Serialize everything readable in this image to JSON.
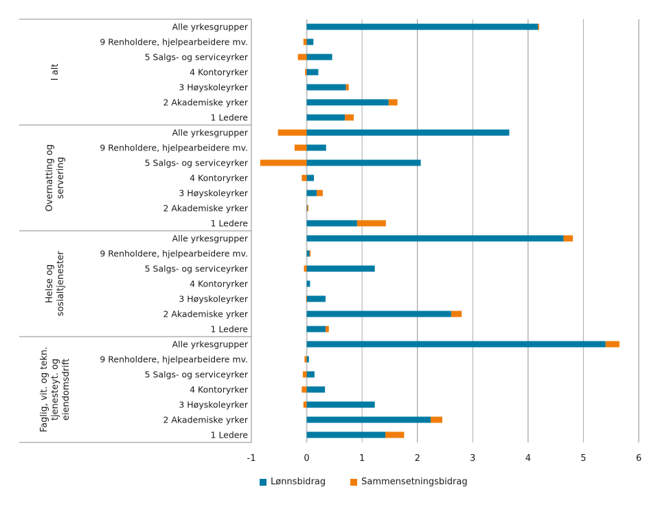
{
  "chart_data": {
    "type": "bar",
    "orientation": "horizontal",
    "stacked": true,
    "title": "",
    "xlabel": "",
    "ylabel": "",
    "xlim": [
      -1,
      6
    ],
    "xticks": [
      -1,
      0,
      1,
      2,
      3,
      4,
      5,
      6
    ],
    "xtick_labels": [
      "-1",
      "0",
      "1",
      "2",
      "3",
      "4",
      "5",
      "6"
    ],
    "grid": "vertical",
    "legend_position": "bottom",
    "categories": [
      "Alle yrkesgrupper",
      "9 Renholdere, hjelpearbeidere mv.",
      "5 Salgs- og serviceyrker",
      "4 Kontoryrker",
      "3 Høyskoleyrker",
      "2 Akademiske yrker",
      "1 Ledere"
    ],
    "groups": [
      {
        "label": "I alt",
        "label_lines": [
          "I alt"
        ],
        "series": [
          {
            "name": "Lønnsbidrag",
            "values": [
              4.18,
              0.12,
              0.46,
              0.21,
              0.71,
              1.48,
              0.69
            ]
          },
          {
            "name": "Sammensetningsbidrag",
            "values": [
              0.02,
              -0.06,
              -0.16,
              -0.03,
              0.05,
              0.16,
              0.16
            ]
          }
        ]
      },
      {
        "label": "Overnatting og servering",
        "label_lines": [
          "Overnatting og",
          "servering"
        ],
        "series": [
          {
            "name": "Lønnsbidrag",
            "values": [
              3.66,
              0.35,
              2.06,
              0.13,
              0.18,
              0.01,
              0.91
            ]
          },
          {
            "name": "Sammensetningsbidrag",
            "values": [
              -0.52,
              -0.22,
              -0.84,
              -0.09,
              0.11,
              0.02,
              0.52
            ]
          }
        ]
      },
      {
        "label": "Helse og sosialtjenester",
        "label_lines": [
          "Helse og",
          "sosialtjenester"
        ],
        "series": [
          {
            "name": "Lønnsbidrag",
            "values": [
              4.64,
              0.05,
              1.23,
              0.06,
              0.34,
              2.61,
              0.34
            ]
          },
          {
            "name": "Sammensetningsbidrag",
            "values": [
              0.17,
              0.02,
              -0.05,
              0.0,
              -0.01,
              0.19,
              0.06
            ]
          }
        ]
      },
      {
        "label": "Faglig, vit. og tekn. tjenesteyt. og eiendomsdrift",
        "label_lines": [
          "Faglig, vit. og tekn.",
          "tjenesteyt. og",
          "eiendomsdrift"
        ],
        "series": [
          {
            "name": "Lønnsbidrag",
            "values": [
              5.4,
              0.04,
              0.14,
              0.33,
              1.23,
              2.24,
              1.42
            ]
          },
          {
            "name": "Sammensetningsbidrag",
            "values": [
              0.25,
              -0.04,
              -0.07,
              -0.09,
              -0.06,
              0.21,
              0.34
            ]
          }
        ]
      }
    ],
    "legend": [
      {
        "name": "Lønnsbidrag",
        "color": "#007ba4"
      },
      {
        "name": "Sammensetningsbidrag",
        "color": "#f07d0a"
      }
    ]
  },
  "legend": {
    "items": [
      {
        "label": "Lønnsbidrag",
        "color": "#007ba4"
      },
      {
        "label": "Sammensetningsbidrag",
        "color": "#f07d0a"
      }
    ]
  }
}
